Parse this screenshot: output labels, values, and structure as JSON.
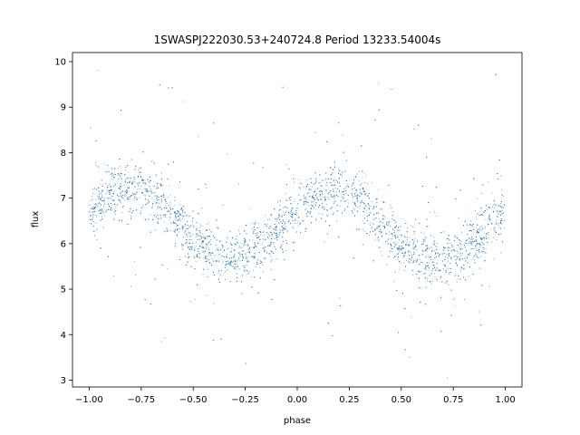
{
  "chart_data": {
    "type": "scatter",
    "title": "1SWASPJ222030.53+240724.8 Period 13233.54004s",
    "xlabel": "phase",
    "ylabel": "flux",
    "xlim": [
      -1.08,
      1.08
    ],
    "ylim": [
      2.85,
      10.2
    ],
    "xticks": [
      -1.0,
      -0.75,
      -0.5,
      -0.25,
      0.0,
      0.25,
      0.5,
      0.75,
      1.0
    ],
    "xtick_labels": [
      "−1.00",
      "−0.75",
      "−0.50",
      "−0.25",
      "0.00",
      "0.25",
      "0.50",
      "0.75",
      "1.00"
    ],
    "yticks": [
      3,
      4,
      5,
      6,
      7,
      8,
      9,
      10
    ],
    "ytick_labels": [
      "3",
      "4",
      "5",
      "6",
      "7",
      "8",
      "9",
      "10"
    ],
    "grid": false,
    "legend": "none",
    "marker_color": "#1f77b4",
    "series": [
      {
        "description_points": "dense sinusoidal light curve, two cycles over phase -1 to 1",
        "x": [
          -1.0,
          -0.9,
          -0.8,
          -0.7,
          -0.6,
          -0.5,
          -0.4,
          -0.3,
          -0.2,
          -0.1,
          0.0,
          0.1,
          0.2,
          0.3,
          0.4,
          0.5,
          0.6,
          0.7,
          0.8,
          0.9,
          1.0
        ],
        "y_center": [
          6.75,
          7.05,
          7.2,
          7.05,
          6.6,
          6.1,
          5.8,
          5.7,
          5.85,
          6.25,
          6.7,
          7.05,
          7.15,
          6.95,
          6.5,
          6.05,
          5.75,
          5.7,
          5.9,
          6.3,
          6.75
        ],
        "y_spread": 0.45
      }
    ]
  }
}
